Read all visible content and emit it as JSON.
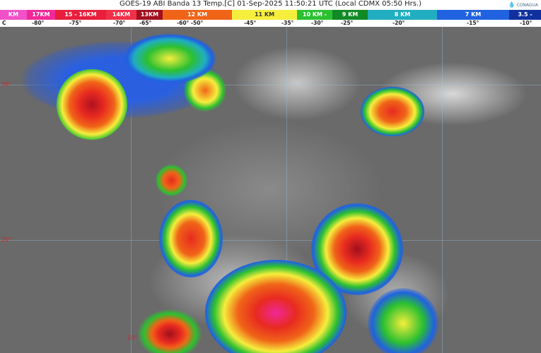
{
  "header": {
    "title": "GOES-19 ABI Banda 13 Temp.[C] 01-Sep-2025 11:50:21 UTC (Local CDMX  05:50 Hrs.)",
    "logo": "CONAGUA"
  },
  "scale": {
    "segments": [
      {
        "label": "KM",
        "color": "#f050c8"
      },
      {
        "label": "17KM",
        "color": "#f02898"
      },
      {
        "label": "15 - 16KM",
        "color": "#e81e3c"
      },
      {
        "label": "14KM",
        "color": "#f03048"
      },
      {
        "label": "13KM",
        "color": "#a0101e"
      },
      {
        "label": "12 KM",
        "color": "#f06418"
      },
      {
        "label": "11 KM",
        "color": "#f6ee3c"
      },
      {
        "label": "10 KM - ",
        "color": "#2cc030"
      },
      {
        "label": "9 KM",
        "color": "#108a24"
      },
      {
        "label": "8 KM",
        "color": "#20aec0"
      },
      {
        "label": "7 KM",
        "color": "#2062e0"
      },
      {
        "label": "3.5 -",
        "color": "#10309e"
      }
    ],
    "temps": [
      "C",
      "-80°",
      "-75°",
      "-70°",
      "-65°",
      "-60°  -50°",
      "-45°",
      "-35°",
      "-30°",
      "-25°",
      "-20°",
      "-15°",
      "-10°"
    ]
  },
  "map": {
    "latitude_labels": [
      "30°",
      "20°",
      "10°"
    ],
    "imagery": "infrared satellite cloud-top temperature"
  }
}
